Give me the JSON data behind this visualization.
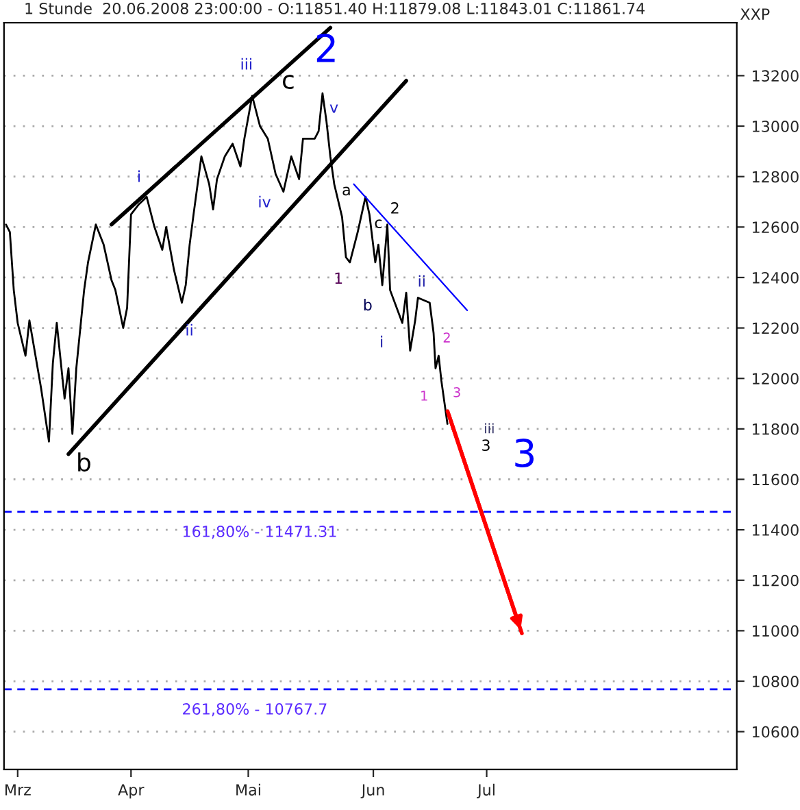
{
  "chart_data": {
    "type": "line",
    "title": "1 Stunde  20.06.2008 23:00:00 - O:11851.40 H:11879.08 L:11843.01 C:11861.74",
    "series": [
      {
        "color": "#000000",
        "x": [
          "2008-02-29",
          "2008-03-01",
          "2008-03-02",
          "2008-03-03",
          "2008-03-05",
          "2008-03-06",
          "2008-03-09",
          "2008-03-11",
          "2008-03-12",
          "2008-03-13",
          "2008-03-15",
          "2008-03-16",
          "2008-03-17",
          "2008-03-18",
          "2008-03-20",
          "2008-03-21",
          "2008-03-23",
          "2008-03-25",
          "2008-03-27",
          "2008-03-28",
          "2008-03-30",
          "2008-03-31",
          "2008-04-01",
          "2008-04-03",
          "2008-04-05",
          "2008-04-07",
          "2008-04-09",
          "2008-04-10",
          "2008-04-12",
          "2008-04-14",
          "2008-04-15",
          "2008-04-16",
          "2008-04-17",
          "2008-04-19",
          "2008-04-21",
          "2008-04-22",
          "2008-04-23",
          "2008-04-25",
          "2008-04-27",
          "2008-04-29",
          "2008-04-30",
          "2008-05-02",
          "2008-05-04",
          "2008-05-06",
          "2008-05-08",
          "2008-05-10",
          "2008-05-12",
          "2008-05-14",
          "2008-05-15",
          "2008-05-18",
          "2008-05-19",
          "2008-05-20",
          "2008-05-21",
          "2008-05-22",
          "2008-05-23",
          "2008-05-25",
          "2008-05-26",
          "2008-05-27",
          "2008-05-29",
          "2008-05-31",
          "2008-06-01",
          "2008-06-02T12:00",
          "2008-06-03T07:00",
          "2008-06-04T07:00",
          "2008-06-05T14:00",
          "2008-06-06T07:00",
          "2008-06-09T10:00",
          "2008-06-10T10:00",
          "2008-06-11T10:00",
          "2008-06-12T17:00",
          "2008-06-13T10:00",
          "2008-06-16T10:00",
          "2008-06-17T10:00",
          "2008-06-17T22:00",
          "2008-06-18T17:00",
          "2008-06-19T10:00",
          "2008-06-20T23:00"
        ],
        "values": [
          12610,
          12580,
          12350,
          12220,
          12090,
          12230,
          11960,
          11750,
          12060,
          12220,
          11920,
          12040,
          11780,
          12040,
          12350,
          12460,
          12610,
          12530,
          12390,
          12350,
          12200,
          12280,
          12650,
          12690,
          12720,
          12600,
          12510,
          12600,
          12430,
          12300,
          12370,
          12530,
          12650,
          12880,
          12770,
          12670,
          12790,
          12880,
          12930,
          12840,
          12950,
          13120,
          13000,
          12950,
          12810,
          12740,
          12880,
          12790,
          12950,
          12950,
          12980,
          13130,
          13020,
          12880,
          12770,
          12640,
          12480,
          12460,
          12580,
          12720,
          12650,
          12460,
          12530,
          12370,
          12610,
          12350,
          12220,
          12340,
          12110,
          12230,
          12320,
          12300,
          12180,
          12040,
          12090,
          11990,
          11820
        ]
      },
      {
        "color": "#000000",
        "x": [
          "2008-03-27",
          "2008-05-22"
        ],
        "values": [
          12610,
          13390
        ]
      },
      {
        "color": "#000000",
        "x": [
          "2008-03-16",
          "2008-06-10T10:00"
        ],
        "values": [
          11700,
          13180
        ]
      },
      {
        "color": "#0000ff",
        "x": [
          "2008-05-28",
          "2008-06-26"
        ],
        "values": [
          12770,
          12270
        ]
      },
      {
        "color": "#ff0000",
        "x": [
          "2008-06-21",
          "2008-07-10"
        ],
        "values": [
          11870,
          10990
        ]
      }
    ],
    "xlim": [
      "2008-02-28T12:00",
      "2008-09-03"
    ],
    "xticks": [
      {
        "value": "2008-03-03",
        "label": "Mrz"
      },
      {
        "value": "2008-04-01",
        "label": "Apr"
      },
      {
        "value": "2008-05-01",
        "label": "Mai"
      },
      {
        "value": "2008-06-02",
        "label": "Jun"
      },
      {
        "value": "2008-07-01",
        "label": "Jul"
      }
    ],
    "ylim": [
      10450,
      13410
    ],
    "yticks": [
      10600,
      10800,
      11000,
      11200,
      11400,
      11600,
      11800,
      12000,
      12200,
      12400,
      12600,
      12800,
      13000,
      13200
    ],
    "grid": "y",
    "ref_lines": [
      {
        "axis": "y",
        "value": 11471.31,
        "color": "#0000ff",
        "line_style": "dashed"
      },
      {
        "axis": "y",
        "value": 10767.7,
        "color": "#0000ff",
        "line_style": "dashed"
      }
    ],
    "annotations": [
      "XXP",
      {
        "text": "2",
        "x": "2008-05-20",
        "y": 13130
      },
      {
        "text": "c",
        "x": "2008-05-20",
        "y": 13130
      },
      {
        "text": "b",
        "x": "2008-03-17",
        "y": 11780
      },
      {
        "text": "iii",
        "x": "2008-05-02",
        "y": 13120
      },
      {
        "text": "v",
        "x": "2008-05-20",
        "y": 13130
      },
      {
        "text": "i",
        "x": "2008-04-05",
        "y": 12720
      },
      {
        "text": "ii",
        "x": "2008-04-14",
        "y": 12300
      },
      {
        "text": "iv",
        "x": "2008-05-10",
        "y": 12740
      },
      {
        "text": "a",
        "x": "2008-05-31",
        "y": 12720
      },
      {
        "text": "2",
        "x": "2008-06-05T14:00",
        "y": 12610
      },
      {
        "text": "c",
        "x": "2008-06-03T07:00",
        "y": 12530
      },
      {
        "text": "1",
        "x": "2008-05-27",
        "y": 12460
      },
      {
        "text": "b",
        "x": "2008-06-02T12:00",
        "y": 12460
      },
      {
        "text": "ii",
        "x": "2008-06-13T10:00",
        "y": 12320
      },
      {
        "text": "i",
        "x": "2008-06-11T10:00",
        "y": 12110
      },
      {
        "text": "2",
        "x": "2008-06-17T10:00",
        "y": 12180
      },
      {
        "text": "1",
        "x": "2008-06-17T22:00",
        "y": 12040
      },
      {
        "text": "3",
        "x": "2008-06-20T23:00",
        "y": 11820
      },
      {
        "text": "iii",
        "x": "2008-06-20T23:00",
        "y": 11820
      },
      {
        "text": "3",
        "x": "2008-06-24",
        "y": 11730
      },
      {
        "text": "3",
        "x": "2008-06-29",
        "y": 11480
      },
      {
        "text": "161,80% - 11471.31",
        "x": "2008-04-14",
        "y": 11471.31
      },
      {
        "text": "261,80% - 10767.7",
        "x": "2008-04-14",
        "y": 10767.7
      }
    ]
  }
}
